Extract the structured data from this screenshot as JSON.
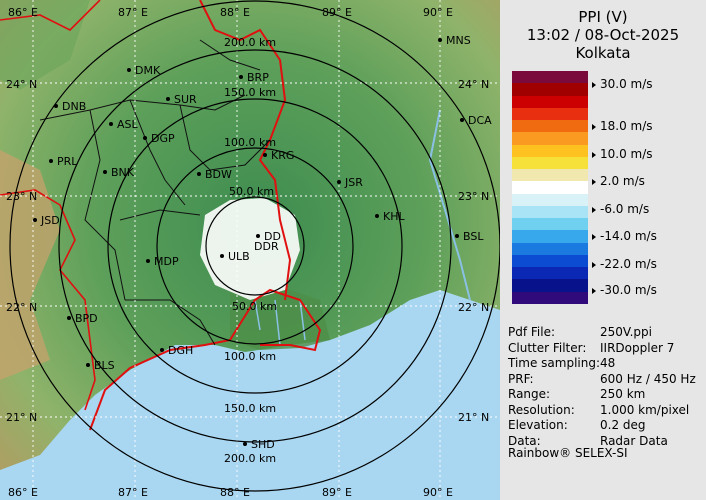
{
  "panel": {
    "title": "PPI (V)",
    "datetime": "13:02 / 08-Oct-2025",
    "station": "Kolkata"
  },
  "scale": {
    "colors": [
      "#7a0a3c",
      "#a00000",
      "#cc0000",
      "#e83010",
      "#f06a10",
      "#fb9a20",
      "#fdc21f",
      "#f6e03a",
      "#f1e8b0",
      "#ffffff",
      "#d8f2f8",
      "#a8e4f6",
      "#70d0f0",
      "#38a8ec",
      "#1a7ae0",
      "#0b4cd2",
      "#0a28b4",
      "#08128a",
      "#300a7a"
    ],
    "ticks": [
      "30.0 m/s",
      "18.0 m/s",
      "10.0 m/s",
      "2.0 m/s",
      "-6.0 m/s",
      "-14.0 m/s",
      "-22.0 m/s",
      "-30.0 m/s"
    ]
  },
  "meta": [
    {
      "k": "Pdf File:",
      "v": "250V.ppi"
    },
    {
      "k": "Clutter Filter:",
      "v": "IIRDoppler 7"
    },
    {
      "k": "Time sampling:",
      "v": "48"
    },
    {
      "k": "PRF:",
      "v": "600 Hz / 450 Hz"
    },
    {
      "k": "Range:",
      "v": "250 km"
    },
    {
      "k": "Resolution:",
      "v": "1.000 km/pixel"
    },
    {
      "k": "Elevation:",
      "v": "0.2 deg"
    },
    {
      "k": "Data:",
      "v": "Radar Data"
    }
  ],
  "vendor": "Rainbow® SELEX-SI",
  "map": {
    "lon_top": [
      "86° E",
      "87° E",
      "88° E",
      "89° E",
      "90° E"
    ],
    "lon_bottom": [
      "86° E",
      "87° E",
      "88° E",
      "89° E",
      "90° E"
    ],
    "lat_left": [
      "24° N",
      "23° N",
      "22° N",
      "21° N"
    ],
    "lat_right": [
      "24° N",
      "23° N",
      "22° N",
      "21° N"
    ],
    "range_labels_top": [
      "200.0 km",
      "150.0 km",
      "100.0 km",
      "50.0 km"
    ],
    "range_labels_bottom": [
      "50.0 km",
      "100.0 km",
      "150.0 km",
      "200.0 km"
    ],
    "stations": [
      "MNS",
      "DMK",
      "BRP",
      "SUR",
      "DNB",
      "ASL",
      "DGP",
      "DCA",
      "KRG",
      "PRL",
      "BNK",
      "BDW",
      "JSR",
      "KHL",
      "JSD",
      "MDP",
      "DD",
      "DDR",
      "ULB",
      "BSL",
      "BPD",
      "BLS",
      "DGH",
      "SHD"
    ]
  }
}
